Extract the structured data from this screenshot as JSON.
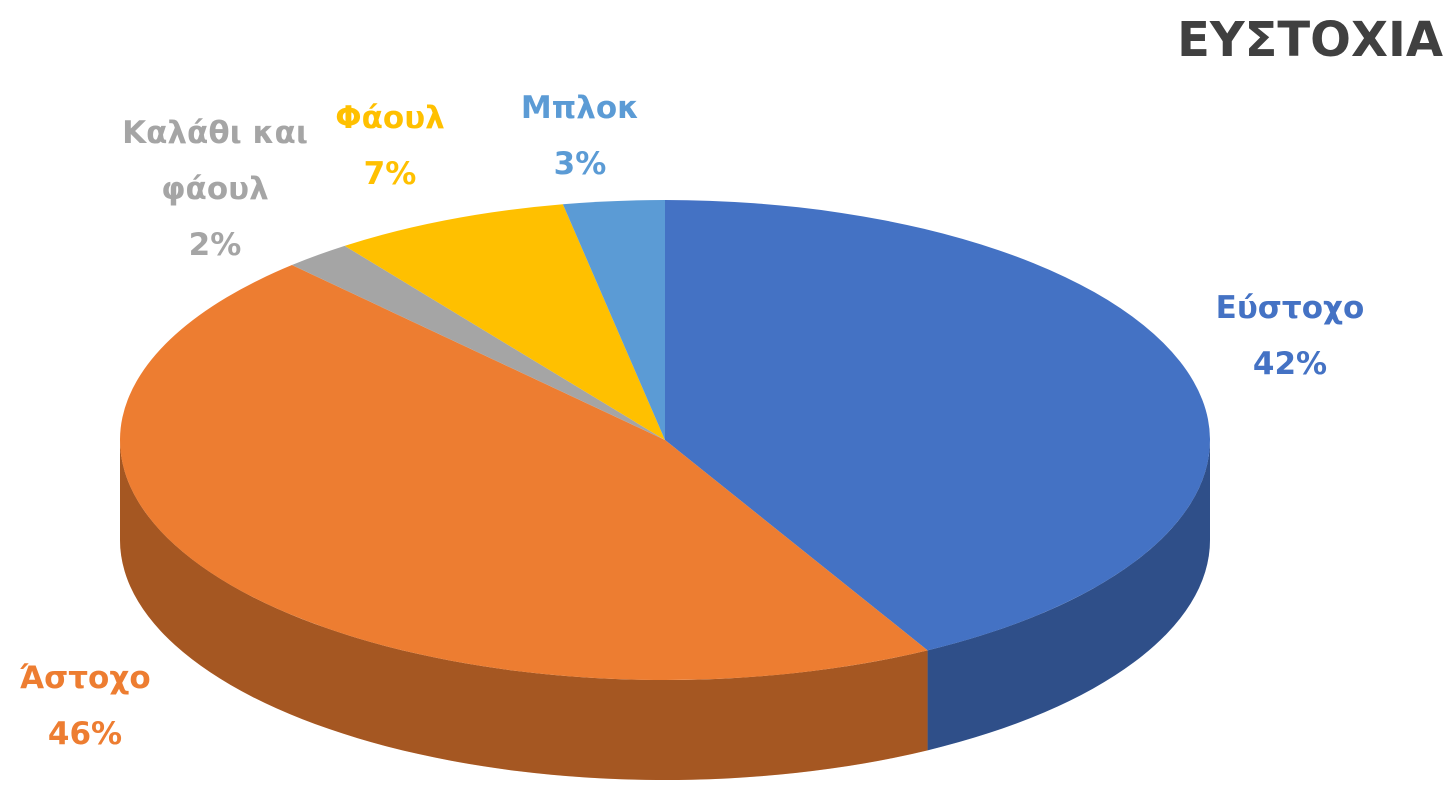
{
  "chart_data": {
    "type": "pie",
    "title": "ΕΥΣΤΟΧΙΑ",
    "categories": [
      "Εύστοχο",
      "Άστοχο",
      "Καλάθι και φάουλ",
      "Φάουλ",
      "Μπλοκ"
    ],
    "values": [
      42,
      46,
      2,
      7,
      3
    ],
    "value_labels": [
      "42%",
      "46%",
      "2%",
      "7%",
      "3%"
    ],
    "colors": [
      "#4472c4",
      "#ed7d31",
      "#a5a5a5",
      "#ffc000",
      "#5b9bd5"
    ]
  }
}
